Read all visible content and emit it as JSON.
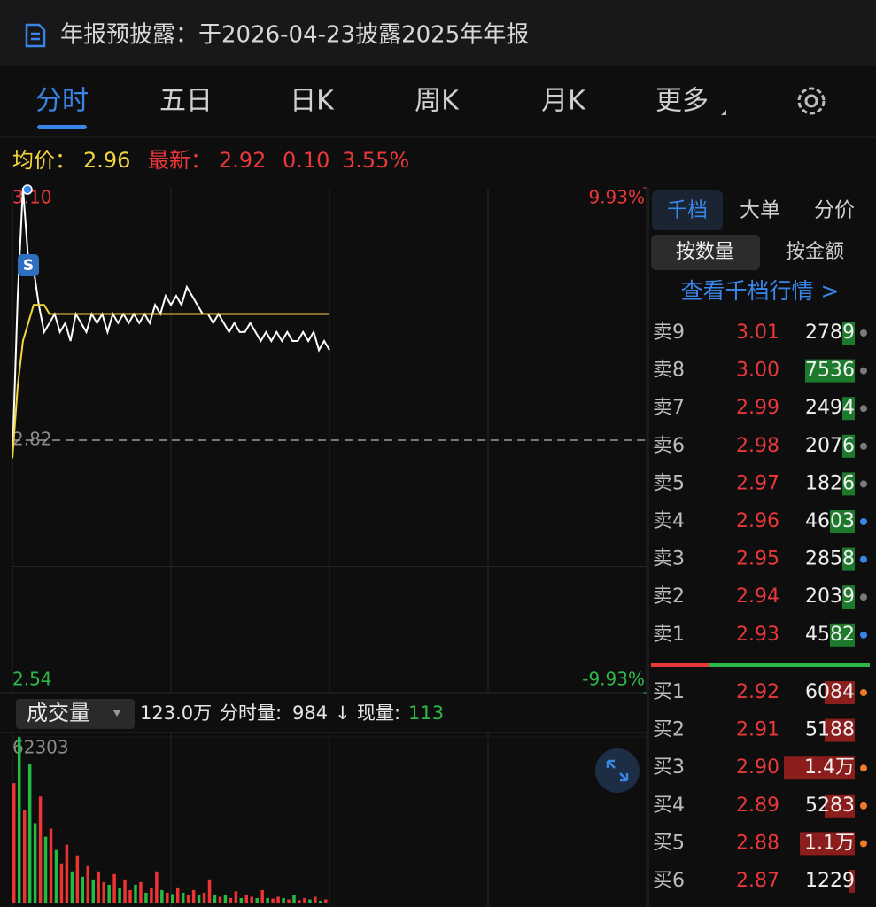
{
  "banner": {
    "text": "年报预披露：于2026-04-23披露2025年年报"
  },
  "tabs": {
    "items": [
      "分时",
      "五日",
      "日K",
      "周K",
      "月K",
      "更多"
    ],
    "active": 0
  },
  "quote": {
    "avg_label": "均价：",
    "avg": "2.96",
    "latest_label": "最新：",
    "latest": "2.92",
    "change": "0.10",
    "change_pct": "3.55%"
  },
  "chart_data": [
    {
      "type": "line",
      "x": [
        0,
        2,
        4,
        6,
        8,
        10,
        12,
        14,
        16,
        18,
        20,
        22,
        24,
        26,
        28,
        30,
        32,
        34,
        36,
        38,
        40,
        42,
        44,
        46,
        48,
        50,
        52,
        54,
        56,
        58,
        60,
        62,
        64,
        66,
        68,
        70,
        72,
        74,
        76,
        78,
        80,
        82,
        84,
        86,
        88,
        90,
        92,
        94,
        96,
        98,
        100,
        102,
        104,
        106,
        108,
        110,
        112,
        114,
        116,
        118,
        120
      ],
      "series": [
        {
          "color": "#ffffff",
          "values": [
            2.8,
            2.98,
            3.1,
            3.02,
            3.01,
            2.97,
            2.94,
            2.95,
            2.96,
            2.94,
            2.95,
            2.93,
            2.96,
            2.95,
            2.94,
            2.96,
            2.95,
            2.96,
            2.94,
            2.96,
            2.95,
            2.96,
            2.95,
            2.96,
            2.95,
            2.96,
            2.95,
            2.97,
            2.96,
            2.98,
            2.97,
            2.98,
            2.97,
            2.99,
            2.98,
            2.97,
            2.96,
            2.96,
            2.95,
            2.96,
            2.95,
            2.94,
            2.95,
            2.94,
            2.94,
            2.95,
            2.94,
            2.93,
            2.94,
            2.93,
            2.94,
            2.93,
            2.94,
            2.93,
            2.93,
            2.94,
            2.93,
            2.94,
            2.92,
            2.93,
            2.92
          ]
        },
        {
          "color": "#f2d43c",
          "values": [
            2.8,
            2.88,
            2.93,
            2.95,
            2.97,
            2.97,
            2.97,
            2.96,
            2.96,
            2.96,
            2.96,
            2.96,
            2.96,
            2.96,
            2.96,
            2.96,
            2.96,
            2.96,
            2.96,
            2.96,
            2.96,
            2.96,
            2.96,
            2.96,
            2.96,
            2.96,
            2.96,
            2.96,
            2.96,
            2.96,
            2.96,
            2.96,
            2.96,
            2.96,
            2.96,
            2.96,
            2.96,
            2.96,
            2.96,
            2.96,
            2.96,
            2.96,
            2.96,
            2.96,
            2.96,
            2.96,
            2.96,
            2.96,
            2.96,
            2.96,
            2.96,
            2.96,
            2.96,
            2.96,
            2.96,
            2.96,
            2.96,
            2.96,
            2.96,
            2.96,
            2.96
          ]
        }
      ],
      "xlim": [
        0,
        240
      ],
      "ylim": [
        2.54,
        3.1
      ],
      "yticks": [
        {
          "value": 3.1,
          "label": "3.10"
        },
        2.82,
        2.54
      ],
      "y2lim": [
        -9.93,
        9.93
      ],
      "y2ticks": [
        {
          "value": 9.93,
          "label": "9.93%"
        },
        {
          "value": -9.93,
          "label": "-9.93%"
        }
      ]
    },
    {
      "type": "bar",
      "x": [
        0,
        2,
        4,
        6,
        8,
        10,
        12,
        14,
        16,
        18,
        20,
        22,
        24,
        26,
        28,
        30,
        32,
        34,
        36,
        38,
        40,
        42,
        44,
        46,
        48,
        50,
        52,
        54,
        56,
        58,
        60,
        62,
        64,
        66,
        68,
        70,
        72,
        74,
        76,
        78,
        80,
        82,
        84,
        86,
        88,
        90,
        92,
        94,
        96,
        98,
        100,
        102,
        104,
        106,
        108,
        110,
        112,
        114,
        116,
        118
      ],
      "values": [
        45000,
        62303,
        35000,
        52000,
        30000,
        40000,
        25000,
        28000,
        20000,
        15000,
        22000,
        12000,
        18000,
        10000,
        14000,
        9000,
        12000,
        8000,
        7000,
        11000,
        6000,
        9000,
        5000,
        7000,
        8000,
        4000,
        6000,
        12000,
        5000,
        4000,
        3500,
        6000,
        4000,
        3000,
        5000,
        3000,
        4000,
        9000,
        3000,
        2500,
        3000,
        2000,
        4500,
        2000,
        3000,
        2500,
        2000,
        5000,
        2000,
        1800,
        2500,
        2000,
        1500,
        3000,
        1200,
        2000,
        1500,
        2500,
        1000,
        1500
      ],
      "bar_colors": [
        "#e33",
        "#2b4",
        "#e33",
        "#2b4",
        "#2b4",
        "#e33",
        "#2b4",
        "#e33",
        "#2b4",
        "#e33",
        "#e33",
        "#2b4",
        "#e33",
        "#2b4",
        "#e33",
        "#2b4",
        "#e33",
        "#e33",
        "#2b4",
        "#e33",
        "#2b4",
        "#e33",
        "#e33",
        "#2b4",
        "#e33",
        "#2b4",
        "#e33",
        "#e33",
        "#2b4",
        "#e33",
        "#2b4",
        "#e33",
        "#2b4",
        "#e33",
        "#e33",
        "#2b4",
        "#e33",
        "#e33",
        "#2b4",
        "#e33",
        "#2b4",
        "#e33",
        "#e33",
        "#2b4",
        "#e33",
        "#e33",
        "#2b4",
        "#e33",
        "#2b4",
        "#e33",
        "#e33",
        "#2b4",
        "#e33",
        "#2b4",
        "#e33",
        "#e33",
        "#2b4",
        "#e33",
        "#2b4",
        "#e33"
      ],
      "xlim": [
        0,
        240
      ],
      "ylim": [
        0,
        62303
      ],
      "yticks": [
        62303
      ]
    }
  ],
  "volume_header": {
    "selector": "成交量",
    "total": "123.0万",
    "minute_label": "分时量:",
    "minute": "984",
    "arrow": "↓",
    "current_label": "现量:",
    "current": "113"
  },
  "order_book": {
    "tabs": [
      "千档",
      "大单",
      "分价"
    ],
    "active_tab": 0,
    "modes": [
      "按数量",
      "按金额"
    ],
    "active_mode": 0,
    "link": "查看千档行情 >",
    "asks": [
      {
        "label": "卖9",
        "price": "3.01",
        "volume": "2789",
        "dot": "#7a7a7a"
      },
      {
        "label": "卖8",
        "price": "3.00",
        "volume": "7536",
        "dot": "#7a7a7a"
      },
      {
        "label": "卖7",
        "price": "2.99",
        "volume": "2494",
        "dot": "#7a7a7a"
      },
      {
        "label": "卖6",
        "price": "2.98",
        "volume": "2076",
        "dot": "#7a7a7a"
      },
      {
        "label": "卖5",
        "price": "2.97",
        "volume": "1826",
        "dot": "#7a7a7a"
      },
      {
        "label": "卖4",
        "price": "2.96",
        "volume": "4603",
        "dot": "#3a86e8"
      },
      {
        "label": "卖3",
        "price": "2.95",
        "volume": "2858",
        "dot": "#3a86e8"
      },
      {
        "label": "卖2",
        "price": "2.94",
        "volume": "2039",
        "dot": "#7a7a7a"
      },
      {
        "label": "卖1",
        "price": "2.93",
        "volume": "4582",
        "dot": "#3a86e8"
      }
    ],
    "bids": [
      {
        "label": "买1",
        "price": "2.92",
        "volume": "6084",
        "dot": "#f07a2a"
      },
      {
        "label": "买2",
        "price": "2.91",
        "volume": "5188"
      },
      {
        "label": "买3",
        "price": "2.90",
        "volume": "1.4万",
        "dot": "#f07a2a"
      },
      {
        "label": "买4",
        "price": "2.89",
        "volume": "5283",
        "dot": "#f07a2a"
      },
      {
        "label": "买5",
        "price": "2.88",
        "volume": "1.1万",
        "dot": "#f07a2a"
      },
      {
        "label": "买6",
        "price": "2.87",
        "volume": "1229"
      }
    ]
  }
}
